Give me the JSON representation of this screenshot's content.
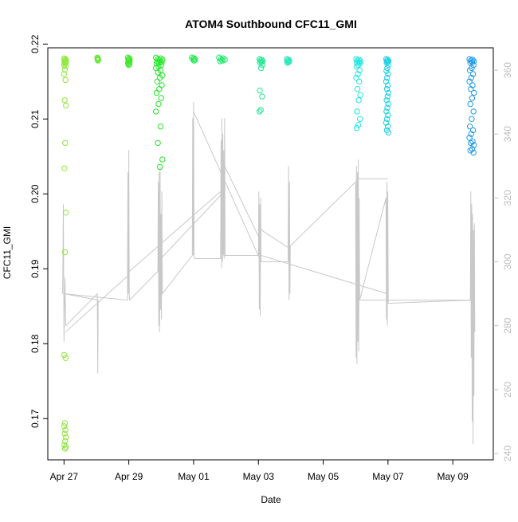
{
  "chart_data": {
    "type": "scatter",
    "title": "ATOM4 Southbound CFC11_GMI",
    "xlabel": "Date",
    "ylabel": "CFC11_GMI",
    "x_ticks": [
      {
        "date": "2017-04-27",
        "label": "Apr 27"
      },
      {
        "date": "2017-04-29",
        "label": "Apr 29"
      },
      {
        "date": "2017-05-01",
        "label": "May 01"
      },
      {
        "date": "2017-05-03",
        "label": "May 03"
      },
      {
        "date": "2017-05-05",
        "label": "May 05"
      },
      {
        "date": "2017-05-07",
        "label": "May 07"
      },
      {
        "date": "2017-05-09",
        "label": "May 09"
      }
    ],
    "xlim": [
      "2017-04-26 12:00",
      "2017-05-10 06:00"
    ],
    "ylim": [
      0.1645,
      0.2195
    ],
    "y_ticks": [
      0.17,
      0.18,
      0.19,
      0.2,
      0.21,
      0.22
    ],
    "y_tick_labels": [
      "0.17",
      "0.18",
      "0.19",
      "0.20",
      "0.21",
      "0.22"
    ],
    "y2lim": [
      238,
      367
    ],
    "y2_ticks": [
      240,
      260,
      280,
      300,
      320,
      340,
      360
    ],
    "y2_tick_labels": [
      "240",
      "260",
      "280",
      "300",
      "320",
      "340",
      "360"
    ],
    "grid": false,
    "scatter_clusters": [
      {
        "date": "2017-04-27 00:45",
        "spread_days": 0.06,
        "color": "#8ee63c",
        "values": [
          0.2181,
          0.218,
          0.2179,
          0.2178,
          0.2177,
          0.2176,
          0.2175,
          0.2174,
          0.2172,
          0.217,
          0.2166,
          0.216,
          0.2152,
          0.2125,
          0.2118,
          0.2068,
          0.2034,
          0.1975,
          0.1922,
          0.1785,
          0.1781,
          0.1694,
          0.169,
          0.1685,
          0.168,
          0.1675,
          0.167,
          0.1665,
          0.1662,
          0.166
        ]
      },
      {
        "date": "2017-04-28 01:00",
        "spread_days": 0.03,
        "color": "#66e633",
        "values": [
          0.2182,
          0.2181,
          0.218,
          0.2179,
          0.2178
        ]
      },
      {
        "date": "2017-04-29 00:00",
        "spread_days": 0.06,
        "color": "#44e62e",
        "values": [
          0.2182,
          0.2181,
          0.218,
          0.2179,
          0.2178,
          0.2177,
          0.2176,
          0.2175,
          0.2174,
          0.2173,
          0.2172
        ]
      },
      {
        "date": "2017-04-29 22:30",
        "spread_days": 0.2,
        "color": "#22e626",
        "values": [
          0.2182,
          0.2181,
          0.218,
          0.2179,
          0.2178,
          0.2177,
          0.2176,
          0.2175,
          0.2174,
          0.2172,
          0.217,
          0.2168,
          0.2165,
          0.2162,
          0.2158,
          0.2155,
          0.215,
          0.2145,
          0.214,
          0.2135,
          0.2128,
          0.212,
          0.211,
          0.209,
          0.2068,
          0.2046,
          0.2036
        ]
      },
      {
        "date": "2017-05-01 00:00",
        "spread_days": 0.1,
        "color": "#1ee64a",
        "values": [
          0.2182,
          0.2181,
          0.218,
          0.2179,
          0.2178
        ]
      },
      {
        "date": "2017-05-01 21:00",
        "spread_days": 0.18,
        "color": "#1ee66a",
        "values": [
          0.2182,
          0.2181,
          0.218,
          0.2179,
          0.2178,
          0.2177
        ]
      },
      {
        "date": "2017-05-03 02:00",
        "spread_days": 0.1,
        "color": "#1ee693",
        "values": [
          0.218,
          0.2179,
          0.2178,
          0.2177,
          0.2176,
          0.2175,
          0.2172,
          0.2168,
          0.2138,
          0.213,
          0.2112,
          0.211
        ]
      },
      {
        "date": "2017-05-03 22:00",
        "spread_days": 0.08,
        "color": "#1ee6b4",
        "values": [
          0.218,
          0.2179,
          0.2178,
          0.2177,
          0.2176,
          0.2175
        ]
      },
      {
        "date": "2017-05-06 02:00",
        "spread_days": 0.13,
        "color": "#1ee6e0",
        "values": [
          0.218,
          0.2179,
          0.2178,
          0.2177,
          0.2176,
          0.2175,
          0.2174,
          0.2172,
          0.217,
          0.2165,
          0.216,
          0.2155,
          0.215,
          0.214,
          0.2132,
          0.2125,
          0.211,
          0.21,
          0.2092,
          0.2088
        ]
      },
      {
        "date": "2017-05-06 23:30",
        "spread_days": 0.07,
        "color": "#1ecfe6",
        "values": [
          0.218,
          0.2179,
          0.2178,
          0.2177,
          0.2176,
          0.2175,
          0.2172,
          0.2168,
          0.2164,
          0.216,
          0.2155,
          0.215,
          0.2145,
          0.214,
          0.2135,
          0.213,
          0.2125,
          0.212,
          0.2115,
          0.211,
          0.2105,
          0.21,
          0.2095,
          0.209,
          0.2085,
          0.2082
        ]
      },
      {
        "date": "2017-05-09 14:00",
        "spread_days": 0.14,
        "color": "#1e9ae6",
        "values": [
          0.218,
          0.2179,
          0.2178,
          0.2177,
          0.2176,
          0.2175,
          0.2172,
          0.2168,
          0.2165,
          0.216,
          0.2155,
          0.215,
          0.2145,
          0.214,
          0.2135,
          0.2128,
          0.212,
          0.211,
          0.21,
          0.209,
          0.2085,
          0.208,
          0.2075,
          0.207,
          0.2068,
          0.2065,
          0.206,
          0.2058,
          0.2055
        ]
      }
    ],
    "altitude_path": [
      [
        "2017-04-26 23:00",
        290
      ],
      [
        "2017-04-26 23:30",
        318
      ],
      [
        "2017-04-27 00:00",
        275
      ],
      [
        "2017-04-27 00:20",
        285
      ],
      [
        "2017-04-27 00:40",
        295
      ],
      [
        "2017-04-27 01:00",
        287
      ],
      [
        "2017-04-27 01:20",
        280
      ],
      [
        "2017-04-28 00:40",
        290
      ],
      [
        "2017-04-28 01:00",
        265
      ],
      [
        "2017-04-28 01:20",
        288
      ],
      [
        "2017-04-27 00:20",
        290
      ],
      [
        "2017-04-28 23:00",
        288
      ],
      [
        "2017-04-28 23:20",
        328
      ],
      [
        "2017-04-28 23:40",
        290
      ],
      [
        "2017-04-29 00:00",
        335
      ],
      [
        "2017-04-29 00:20",
        290
      ],
      [
        "2017-04-29 00:30",
        288
      ],
      [
        "2017-04-29 21:30",
        297
      ],
      [
        "2017-04-29 21:50",
        325
      ],
      [
        "2017-04-29 22:10",
        280
      ],
      [
        "2017-04-29 22:30",
        328
      ],
      [
        "2017-04-29 22:50",
        278
      ],
      [
        "2017-04-29 23:10",
        330
      ],
      [
        "2017-04-29 23:30",
        285
      ],
      [
        "2017-04-29 23:50",
        315
      ],
      [
        "2017-04-30 00:10",
        282
      ],
      [
        "2017-04-30 00:30",
        322
      ],
      [
        "2017-04-30 00:50",
        290
      ],
      [
        "2017-04-30 23:00",
        302
      ],
      [
        "2017-04-30 23:20",
        345
      ],
      [
        "2017-04-30 23:40",
        302
      ],
      [
        "2017-05-01 00:00",
        350
      ],
      [
        "2017-05-01 00:20",
        302
      ],
      [
        "2017-05-01 00:40",
        301
      ],
      [
        "2017-05-01 20:00",
        301
      ],
      [
        "2017-05-01 20:20",
        338
      ],
      [
        "2017-05-01 20:40",
        298
      ],
      [
        "2017-05-01 21:00",
        345
      ],
      [
        "2017-05-01 21:20",
        300
      ],
      [
        "2017-05-01 21:40",
        340
      ],
      [
        "2017-05-01 22:00",
        302
      ],
      [
        "2017-05-01 22:20",
        335
      ],
      [
        "2017-05-01 22:40",
        301
      ],
      [
        "2017-05-01 23:00",
        345
      ],
      [
        "2017-05-01 23:20",
        302
      ],
      [
        "2017-05-03 00:00",
        302
      ],
      [
        "2017-05-03 00:20",
        322
      ],
      [
        "2017-05-03 00:40",
        285
      ],
      [
        "2017-05-03 01:00",
        318
      ],
      [
        "2017-05-03 01:20",
        283
      ],
      [
        "2017-05-03 01:40",
        320
      ],
      [
        "2017-05-03 02:00",
        300
      ],
      [
        "2017-05-03 22:00",
        300
      ],
      [
        "2017-05-03 22:20",
        330
      ],
      [
        "2017-05-03 22:40",
        288
      ],
      [
        "2017-05-03 23:00",
        325
      ],
      [
        "2017-05-03 23:20",
        290
      ],
      [
        "2017-05-03 23:40",
        305
      ],
      [
        "2017-05-06 00:00",
        325
      ],
      [
        "2017-05-06 00:20",
        270
      ],
      [
        "2017-05-06 00:40",
        330
      ],
      [
        "2017-05-06 01:00",
        268
      ],
      [
        "2017-05-06 01:20",
        328
      ],
      [
        "2017-05-06 01:40",
        275
      ],
      [
        "2017-05-06 02:00",
        332
      ],
      [
        "2017-05-06 02:20",
        272
      ],
      [
        "2017-05-06 02:40",
        320
      ],
      [
        "2017-05-06 03:00",
        288
      ],
      [
        "2017-05-06 22:30",
        320
      ],
      [
        "2017-05-06 22:50",
        282
      ],
      [
        "2017-05-06 23:10",
        325
      ],
      [
        "2017-05-06 23:30",
        280
      ],
      [
        "2017-05-06 23:50",
        322
      ],
      [
        "2017-05-07 00:10",
        287
      ],
      [
        "2017-05-09 13:00",
        288
      ],
      [
        "2017-05-09 13:20",
        322
      ],
      [
        "2017-05-09 13:40",
        270
      ],
      [
        "2017-05-09 14:00",
        318
      ],
      [
        "2017-05-09 14:20",
        250
      ],
      [
        "2017-05-09 14:40",
        315
      ],
      [
        "2017-05-09 15:00",
        243
      ],
      [
        "2017-05-09 15:20",
        310
      ],
      [
        "2017-05-09 15:40",
        258
      ],
      [
        "2017-05-09 16:00",
        312
      ],
      [
        "2017-05-09 16:20",
        278
      ]
    ],
    "altitude_links": [
      [
        [
          "2017-04-27 01:00",
          278
        ],
        [
          "2017-04-29 00:20",
          296
        ]
      ],
      [
        [
          "2017-04-29 00:30",
          297
        ],
        [
          "2017-05-01 20:00",
          322
        ]
      ],
      [
        [
          "2017-04-29 21:30",
          300
        ],
        [
          "2017-05-01 22:40",
          322
        ]
      ],
      [
        [
          "2017-05-01 00:00",
          347
        ],
        [
          "2017-05-03 02:00",
          300
        ]
      ],
      [
        [
          "2017-05-01 23:00",
          330
        ],
        [
          "2017-05-03 00:00",
          308
        ]
      ],
      [
        [
          "2017-05-03 02:00",
          310
        ],
        [
          "2017-05-03 23:40",
          304
        ]
      ],
      [
        [
          "2017-05-03 02:00",
          302
        ],
        [
          "2017-05-06 23:30",
          290
        ]
      ],
      [
        [
          "2017-05-06 00:00",
          326
        ],
        [
          "2017-05-06 23:50",
          326
        ]
      ],
      [
        [
          "2017-05-06 03:00",
          288
        ],
        [
          "2017-05-09 14:00",
          288
        ]
      ]
    ]
  }
}
